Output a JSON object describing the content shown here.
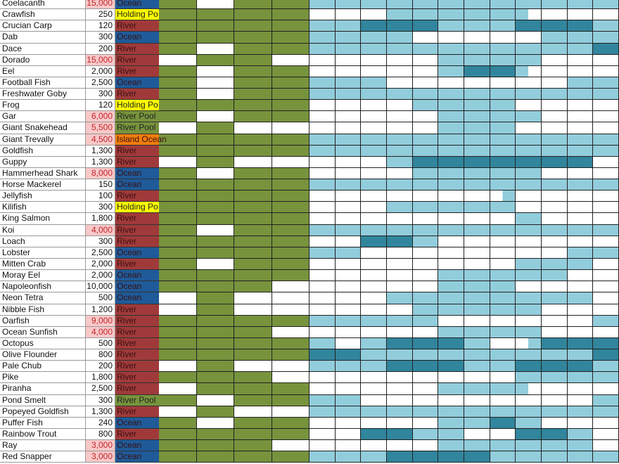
{
  "colors": {
    "ocean": "#1f5a99",
    "river": "#a03a3a",
    "holding_pond": "#ffff00",
    "river_pool": "#77933c",
    "island_ocean": "#f07d0c",
    "green_on": "#77933c",
    "blue_light": "#92cddc",
    "blue_dark": "#31859c",
    "off": "#ffffff",
    "price_high_bg": "#f9c8c8"
  },
  "legend_codes": {
    "G": "green",
    "W": "white",
    "L": "light blue",
    "D": "dark blue",
    "H": "light then white",
    "R": "white then light"
  },
  "rows": [
    {
      "name": "Coelacanth",
      "price": "15,000",
      "high": true,
      "location": "Ocean",
      "loc": "ocean",
      "green": "GWGG",
      "blue": "LLLLLLLLLLLL"
    },
    {
      "name": "Crawfish",
      "price": "250",
      "high": false,
      "location": "Holding Po",
      "loc": "holding_pond",
      "green": "GGGG",
      "blue": "WWWLLLLLHWWW"
    },
    {
      "name": "Crucian Carp",
      "price": "120",
      "high": false,
      "location": "River",
      "loc": "river",
      "green": "GGGG",
      "blue": "LLDDDLLLDDDL"
    },
    {
      "name": "Dab",
      "price": "300",
      "high": false,
      "location": "Ocean",
      "loc": "ocean",
      "green": "GGGG",
      "blue": "LLLLWWWWWLLL"
    },
    {
      "name": "Dace",
      "price": "200",
      "high": false,
      "location": "River",
      "loc": "river",
      "green": "GWGG",
      "blue": "LLLLLLLLLLLD"
    },
    {
      "name": "Dorado",
      "price": "15,000",
      "high": true,
      "location": "River",
      "loc": "river",
      "green": "WGGW",
      "blue": "WWWWWLLLLWWW"
    },
    {
      "name": "Eel",
      "price": "2,000",
      "high": false,
      "location": "River",
      "loc": "river",
      "green": "GWGG",
      "blue": "WWWWWLDDHWWW"
    },
    {
      "name": "Football Fish",
      "price": "2,500",
      "high": false,
      "location": "Ocean",
      "loc": "ocean",
      "green": "GWGG",
      "blue": "LLLWWWWWWWLL"
    },
    {
      "name": "Freshwater Goby",
      "price": "300",
      "high": false,
      "location": "River",
      "loc": "river",
      "green": "GWGG",
      "blue": "LLLLLLLLLLLL"
    },
    {
      "name": "Frog",
      "price": "120",
      "high": false,
      "location": "Holding Po",
      "loc": "holding_pond",
      "green": "GGGG",
      "blue": "WWWWLLLLWWWW"
    },
    {
      "name": "Gar",
      "price": "6,000",
      "high": true,
      "location": "River Pool",
      "loc": "river_pool",
      "green": "GWGG",
      "blue": "WWWWWLLLLWWW"
    },
    {
      "name": "Giant Snakehead",
      "price": "5,500",
      "high": true,
      "location": "River Pool",
      "loc": "river_pool",
      "green": "WGWW",
      "blue": "WWWWWLLLWWWW"
    },
    {
      "name": "Giant Trevally",
      "price": "4,500",
      "high": true,
      "location": "Island Ocean",
      "loc": "island_ocean",
      "green": "GGGG",
      "blue": "LLLLLLLLLLLL"
    },
    {
      "name": "Goldfish",
      "price": "1,300",
      "high": false,
      "location": "River",
      "loc": "river",
      "green": "GGGG",
      "blue": "LLLLLLLLLLLL"
    },
    {
      "name": "Guppy",
      "price": "1,300",
      "high": false,
      "location": "River",
      "loc": "river",
      "green": "WGWW",
      "blue": "WWWLDDDDDDDW"
    },
    {
      "name": "Hammerhead Shark",
      "price": "8,000",
      "high": true,
      "location": "Ocean",
      "loc": "ocean",
      "green": "GWGG",
      "blue": "WWWWLLLLLWWW"
    },
    {
      "name": "Horse Mackerel",
      "price": "150",
      "high": false,
      "location": "Ocean",
      "loc": "ocean",
      "green": "GGGG",
      "blue": "LLLLLLLLLLLL"
    },
    {
      "name": "Jellyfish",
      "price": "100",
      "high": false,
      "location": "River",
      "loc": "river",
      "green": "GGGG",
      "blue": "WWWWWWWRWWWW"
    },
    {
      "name": "Kilifish",
      "price": "300",
      "high": false,
      "location": "Holding Po",
      "loc": "holding_pond",
      "green": "GGGG",
      "blue": "WWWLLLLLWWWW"
    },
    {
      "name": "King Salmon",
      "price": "1,800",
      "high": false,
      "location": "River",
      "loc": "river",
      "green": "GGGG",
      "blue": "WWWWWWWWLWWW"
    },
    {
      "name": "Koi",
      "price": "4,000",
      "high": true,
      "location": "River",
      "loc": "river",
      "green": "GWGG",
      "blue": "LLLLLLLLLLLL"
    },
    {
      "name": "Loach",
      "price": "300",
      "high": false,
      "location": "River",
      "loc": "river",
      "green": "GGGG",
      "blue": "WWDDLWWWWWWW"
    },
    {
      "name": "Lobster",
      "price": "2,500",
      "high": false,
      "location": "Ocean",
      "loc": "ocean",
      "green": "GGGG",
      "blue": "LLWWWWWWWWLL"
    },
    {
      "name": "Mitten Crab",
      "price": "2,000",
      "high": false,
      "location": "River",
      "loc": "river",
      "green": "GWGG",
      "blue": "WWWWWWWWLLLW"
    },
    {
      "name": "Moray Eel",
      "price": "2,000",
      "high": false,
      "location": "Ocean",
      "loc": "ocean",
      "green": "GGGG",
      "blue": "WWWWWLLLLLWW"
    },
    {
      "name": "Napoleonfish",
      "price": "10,000",
      "high": false,
      "location": "Ocean",
      "loc": "ocean",
      "green": "GGGW",
      "blue": "WWWWWLLLWWWW"
    },
    {
      "name": "Neon Tetra",
      "price": "500",
      "high": false,
      "location": "Ocean",
      "loc": "ocean",
      "green": "WGWW",
      "blue": "WWWLLLLLLLLW"
    },
    {
      "name": "Nibble Fish",
      "price": "1,200",
      "high": false,
      "location": "River",
      "loc": "river",
      "green": "WGWW",
      "blue": "WWWWLLLLLWWW"
    },
    {
      "name": "Oarfish",
      "price": "9,000",
      "high": true,
      "location": "River",
      "loc": "river",
      "green": "GGGG",
      "blue": "LLLLLWWWWWWL"
    },
    {
      "name": "Ocean Sunfish",
      "price": "4,000",
      "high": true,
      "location": "River",
      "loc": "river",
      "green": "GGGW",
      "blue": "WWWWWLLLLWWW"
    },
    {
      "name": "Octopus",
      "price": "500",
      "high": false,
      "location": "River",
      "loc": "river",
      "green": "GGGG",
      "blue": "LWLDDDLWRDDD"
    },
    {
      "name": "Olive Flounder",
      "price": "800",
      "high": false,
      "location": "River",
      "loc": "river",
      "green": "GGGG",
      "blue": "DDLLLLLLLLLD"
    },
    {
      "name": "Pale Chub",
      "price": "200",
      "high": false,
      "location": "River",
      "loc": "river",
      "green": "WGWW",
      "blue": "LLLDDDLLDDDL"
    },
    {
      "name": "Pike",
      "price": "1,800",
      "high": false,
      "location": "River",
      "loc": "river",
      "green": "GGGW",
      "blue": "WWWWWWWWLLLL"
    },
    {
      "name": "Piranha",
      "price": "2,500",
      "high": false,
      "location": "River",
      "loc": "river",
      "green": "WGGG",
      "blue": "WWWWWLLLHWWW"
    },
    {
      "name": "Pond Smelt",
      "price": "300",
      "high": false,
      "location": "River Pool",
      "loc": "river_pool",
      "green": "GWGG",
      "blue": "LLWWWWWWWWWL"
    },
    {
      "name": "Popeyed Goldfish",
      "price": "1,300",
      "high": false,
      "location": "River",
      "loc": "river",
      "green": "WGWW",
      "blue": "LLLLLLLLLLLL"
    },
    {
      "name": "Puffer Fish",
      "price": "240",
      "high": false,
      "location": "Ocean",
      "loc": "ocean",
      "green": "GWGG",
      "blue": "WWWWWLLDLWWW"
    },
    {
      "name": "Rainbow Trout",
      "price": "800",
      "high": false,
      "location": "River",
      "loc": "river",
      "green": "GGGG",
      "blue": "WWDDLLWWDDLW"
    },
    {
      "name": "Ray",
      "price": "3,000",
      "high": true,
      "location": "Ocean",
      "loc": "ocean",
      "green": "GGGW",
      "blue": "WWWWWLLLLLLW"
    },
    {
      "name": "Red Snapper",
      "price": "3,000",
      "high": true,
      "location": "Ocean",
      "loc": "ocean",
      "green": "GGGG",
      "blue": "LLLDDDDLLLLL"
    }
  ]
}
